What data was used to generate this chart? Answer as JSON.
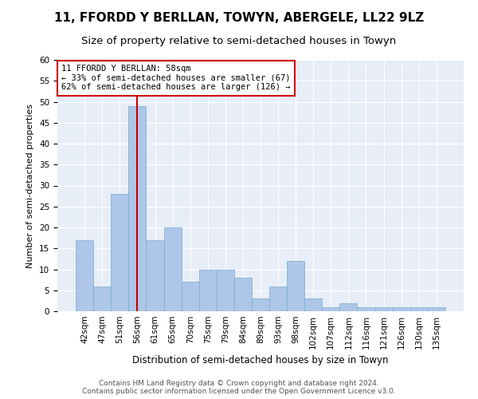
{
  "title": "11, FFORDD Y BERLLAN, TOWYN, ABERGELE, LL22 9LZ",
  "subtitle": "Size of property relative to semi-detached houses in Towyn",
  "xlabel": "Distribution of semi-detached houses by size in Towyn",
  "ylabel": "Number of semi-detached properties",
  "categories": [
    "42sqm",
    "47sqm",
    "51sqm",
    "56sqm",
    "61sqm",
    "65sqm",
    "70sqm",
    "75sqm",
    "79sqm",
    "84sqm",
    "89sqm",
    "93sqm",
    "98sqm",
    "102sqm",
    "107sqm",
    "112sqm",
    "116sqm",
    "121sqm",
    "126sqm",
    "130sqm",
    "135sqm"
  ],
  "values": [
    17,
    6,
    28,
    49,
    17,
    20,
    7,
    10,
    10,
    8,
    3,
    6,
    12,
    3,
    1,
    2,
    1,
    1,
    1,
    1,
    1
  ],
  "highlight_index": 3,
  "bar_color": "#aec6e8",
  "bar_edge_color": "#7aaacf",
  "highlight_line_color": "#cc0000",
  "annotation_box_edge": "#cc0000",
  "annotation_line1": "11 FFORDD Y BERLLAN: 58sqm",
  "annotation_line2": "← 33% of semi-detached houses are smaller (67)",
  "annotation_line3": "62% of semi-detached houses are larger (126) →",
  "annotation_fontsize": 7.5,
  "title_fontsize": 11,
  "subtitle_fontsize": 9.5,
  "xlabel_fontsize": 8.5,
  "ylabel_fontsize": 8,
  "tick_fontsize": 7.5,
  "footer_text": "Contains HM Land Registry data © Crown copyright and database right 2024.\nContains public sector information licensed under the Open Government Licence v3.0.",
  "ylim": [
    0,
    60
  ],
  "background_color": "#e8eef7",
  "fig_background": "#ffffff"
}
